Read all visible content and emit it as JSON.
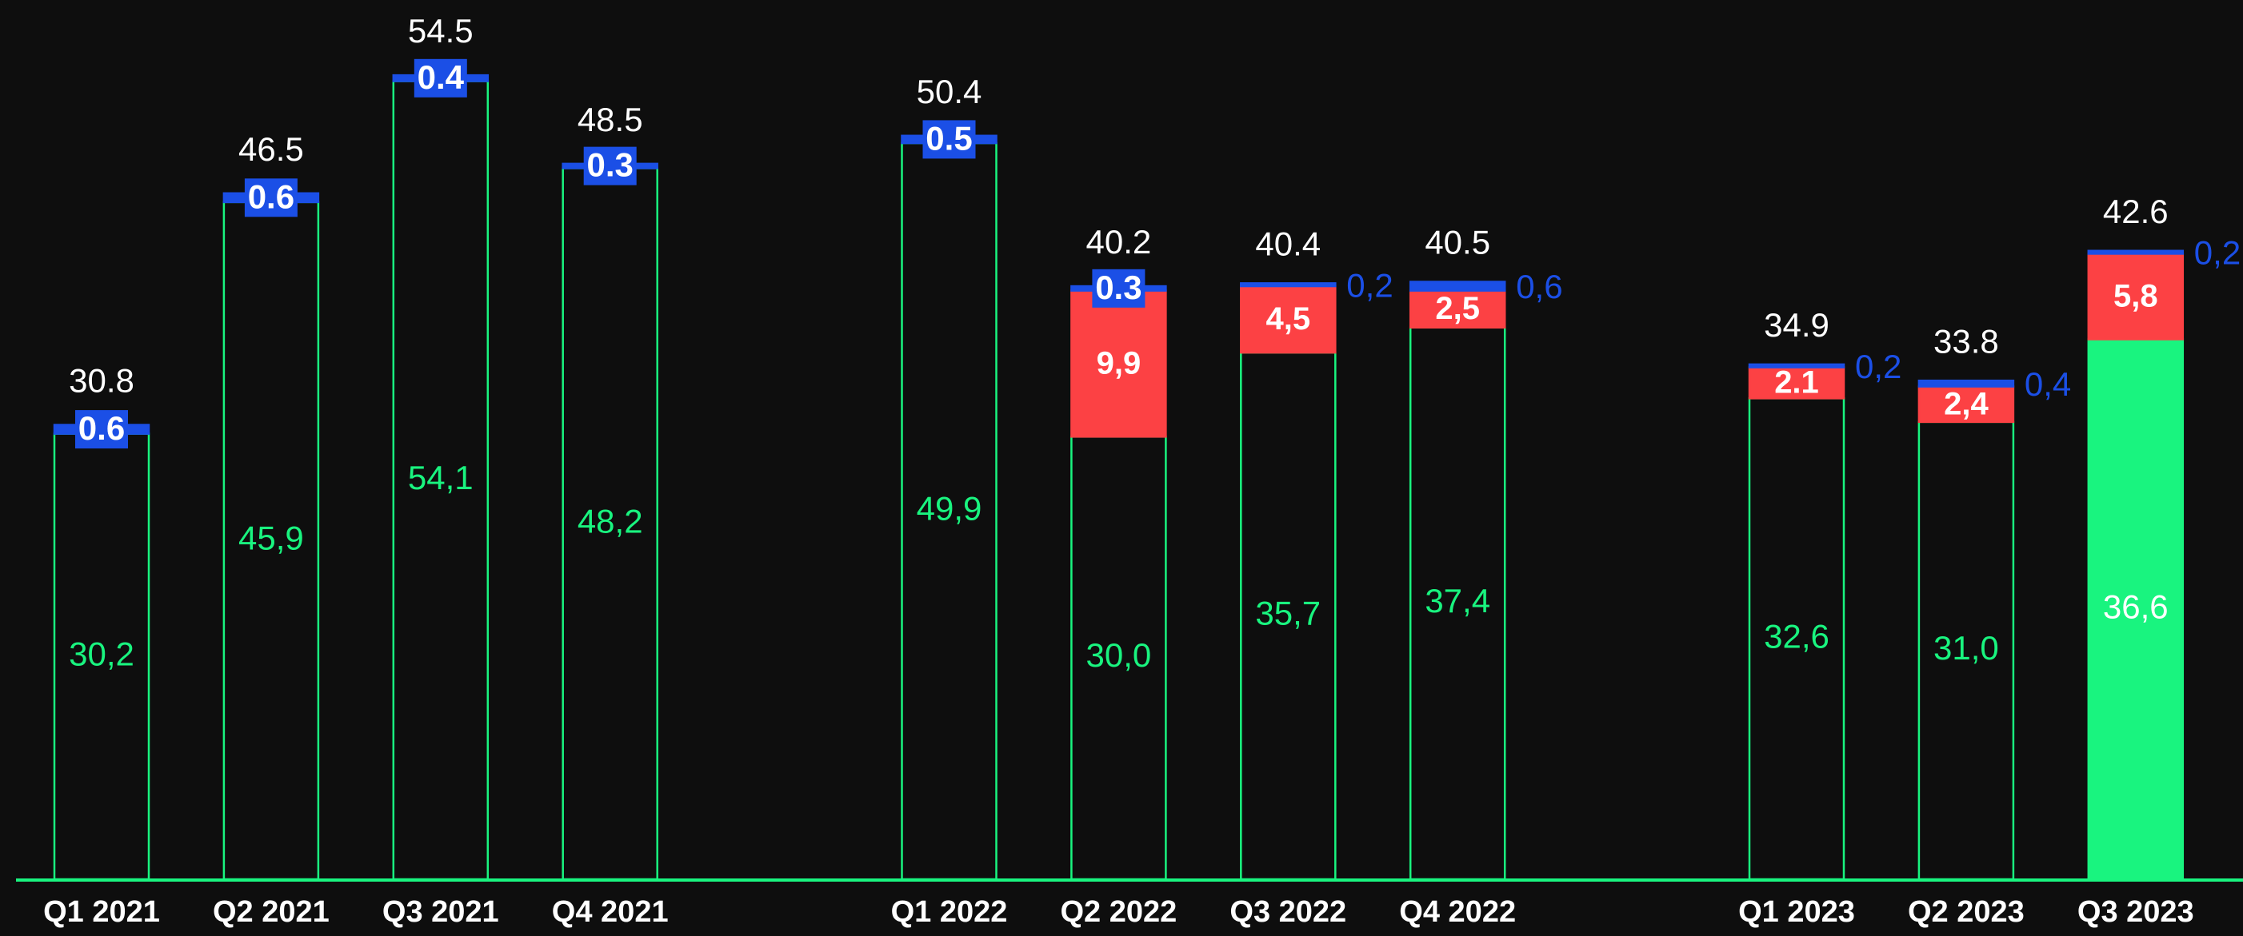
{
  "chart_data": {
    "type": "bar",
    "stacked": true,
    "categories": [
      "Q1 2021",
      "Q2 2021",
      "Q3 2021",
      "Q4 2021",
      null,
      "Q1 2022",
      "Q2 2022",
      "Q3 2022",
      "Q4 2022",
      null,
      "Q1 2023",
      "Q2 2023",
      "Q3 2023"
    ],
    "series": [
      {
        "color": "#19f47f",
        "values": [
          30.2,
          45.9,
          54.1,
          48.2,
          null,
          49.9,
          30.0,
          35.7,
          37.4,
          null,
          32.6,
          31.0,
          36.6
        ],
        "value_labels": [
          "30,2",
          "45,9",
          "54,1",
          "48,2",
          null,
          "49,9",
          "30,0",
          "35,7",
          "37,4",
          null,
          "32,6",
          "31,0",
          "36,6"
        ]
      },
      {
        "color": "#fc4144",
        "values": [
          null,
          null,
          null,
          null,
          null,
          null,
          9.9,
          4.5,
          2.5,
          null,
          2.1,
          2.4,
          5.8
        ],
        "value_labels": [
          null,
          null,
          null,
          null,
          null,
          null,
          "9,9",
          "4,5",
          "2,5",
          null,
          "2.1",
          "2,4",
          "5,8"
        ]
      },
      {
        "color": "#1b4fe6",
        "values": [
          0.6,
          0.6,
          0.4,
          0.3,
          null,
          0.5,
          0.3,
          0.2,
          0.6,
          null,
          0.2,
          0.4,
          0.2
        ],
        "value_labels": [
          "0.6",
          "0.6",
          "0.4",
          "0.3",
          null,
          "0.5",
          "0.3",
          "0,2",
          "0,6",
          null,
          "0,2",
          "0,4",
          "0,2"
        ]
      }
    ],
    "totals": [
      30.8,
      46.5,
      54.5,
      48.5,
      null,
      50.4,
      40.2,
      40.4,
      40.5,
      null,
      34.9,
      33.8,
      42.6
    ],
    "ylim": [
      0,
      59.6
    ]
  }
}
